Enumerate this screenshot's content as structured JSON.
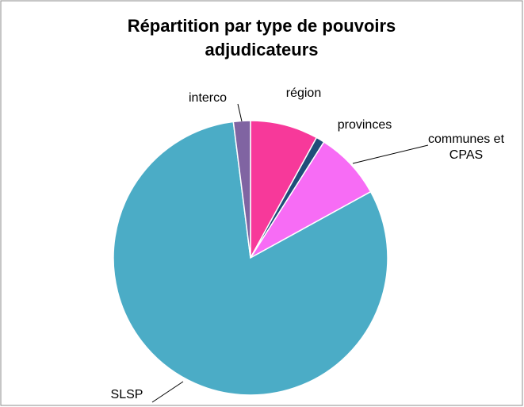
{
  "chart_data": {
    "type": "pie",
    "title": "Répartition par type de pouvoirs adjudicateurs",
    "categories": [
      "région",
      "provinces",
      "communes et CPAS",
      "SLSP",
      "interco"
    ],
    "values": [
      8,
      1,
      8,
      81,
      2
    ],
    "colors": [
      "#f7399a",
      "#1f4e79",
      "#f76cf5",
      "#4bacc6",
      "#8064a2"
    ],
    "start_angle": 0,
    "direction": "clockwise"
  }
}
